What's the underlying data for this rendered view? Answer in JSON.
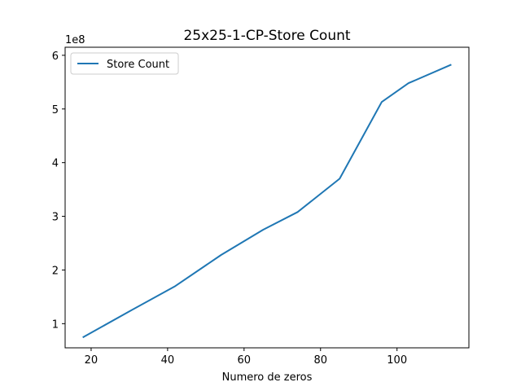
{
  "chart_data": {
    "type": "line",
    "title": "25x25-1-CP-Store Count",
    "xlabel": "Numero de zeros",
    "ylabel": "",
    "y_offset_label": "1e8",
    "y_multiplier": 100000000,
    "xlim": [
      13.2,
      118.8
    ],
    "ylim": [
      0.55,
      6.15
    ],
    "x_ticks": [
      20,
      40,
      60,
      80,
      100
    ],
    "y_ticks": [
      1,
      2,
      3,
      4,
      5,
      6
    ],
    "grid": false,
    "legend_position": "upper-left",
    "series": [
      {
        "name": "Store Count",
        "color": "#1f77b4",
        "x": [
          18,
          30,
          42,
          54,
          65,
          74,
          85,
          96,
          103,
          114
        ],
        "y": [
          0.75,
          1.23,
          1.7,
          2.28,
          2.75,
          3.08,
          3.7,
          5.13,
          5.48,
          5.82
        ]
      }
    ]
  }
}
